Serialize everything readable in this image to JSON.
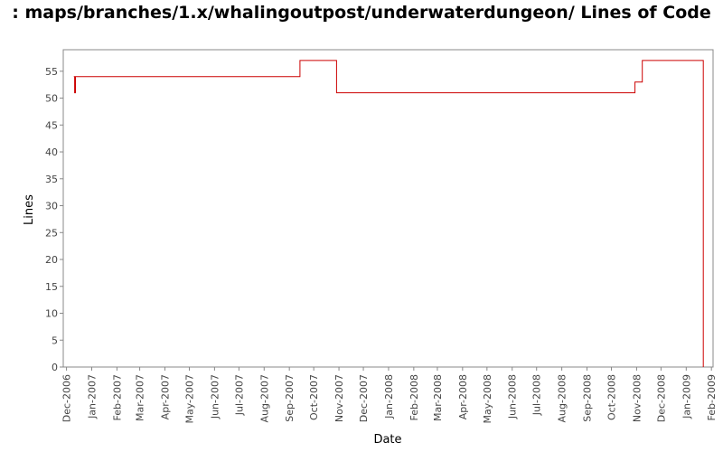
{
  "chart_data": {
    "type": "line",
    "title": ": maps/branches/1.x/whalingoutpost/underwaterdungeon/ Lines of Code",
    "xlabel": "Date",
    "ylabel": "Lines",
    "ylim": [
      0,
      59
    ],
    "yticks": [
      0,
      5,
      10,
      15,
      20,
      25,
      30,
      35,
      40,
      45,
      50,
      55
    ],
    "xlim": [
      "2006-11-27",
      "2009-02-03"
    ],
    "xticks": [
      {
        "date": "2006-12-01",
        "label": "Dec-2006"
      },
      {
        "date": "2007-01-01",
        "label": "Jan-2007"
      },
      {
        "date": "2007-02-01",
        "label": "Feb-2007"
      },
      {
        "date": "2007-03-01",
        "label": "Mar-2007"
      },
      {
        "date": "2007-04-01",
        "label": "Apr-2007"
      },
      {
        "date": "2007-05-01",
        "label": "May-2007"
      },
      {
        "date": "2007-06-01",
        "label": "Jun-2007"
      },
      {
        "date": "2007-07-01",
        "label": "Jul-2007"
      },
      {
        "date": "2007-08-01",
        "label": "Aug-2007"
      },
      {
        "date": "2007-09-01",
        "label": "Sep-2007"
      },
      {
        "date": "2007-10-01",
        "label": "Oct-2007"
      },
      {
        "date": "2007-11-01",
        "label": "Nov-2007"
      },
      {
        "date": "2007-12-01",
        "label": "Dec-2007"
      },
      {
        "date": "2008-01-01",
        "label": "Jan-2008"
      },
      {
        "date": "2008-02-01",
        "label": "Feb-2008"
      },
      {
        "date": "2008-03-01",
        "label": "Mar-2008"
      },
      {
        "date": "2008-04-01",
        "label": "Apr-2008"
      },
      {
        "date": "2008-05-01",
        "label": "May-2008"
      },
      {
        "date": "2008-06-01",
        "label": "Jun-2008"
      },
      {
        "date": "2008-07-01",
        "label": "Jul-2008"
      },
      {
        "date": "2008-08-01",
        "label": "Aug-2008"
      },
      {
        "date": "2008-09-01",
        "label": "Sep-2008"
      },
      {
        "date": "2008-10-01",
        "label": "Oct-2008"
      },
      {
        "date": "2008-11-01",
        "label": "Nov-2008"
      },
      {
        "date": "2008-12-01",
        "label": "Dec-2008"
      },
      {
        "date": "2009-01-01",
        "label": "Jan-2009"
      },
      {
        "date": "2009-02-01",
        "label": "Feb-2009"
      }
    ],
    "step": true,
    "grid": false,
    "legend": "none",
    "series": [
      {
        "color": "#cc0000",
        "points": [
          {
            "x": "2006-12-10",
            "y": 54
          },
          {
            "x": "2006-12-11",
            "y": 51
          },
          {
            "x": "2006-12-12",
            "y": 54
          },
          {
            "x": "2007-09-14",
            "y": 57
          },
          {
            "x": "2007-10-29",
            "y": 51
          },
          {
            "x": "2008-10-30",
            "y": 53
          },
          {
            "x": "2008-11-08",
            "y": 57
          },
          {
            "x": "2009-01-22",
            "y": 0
          }
        ]
      }
    ]
  }
}
